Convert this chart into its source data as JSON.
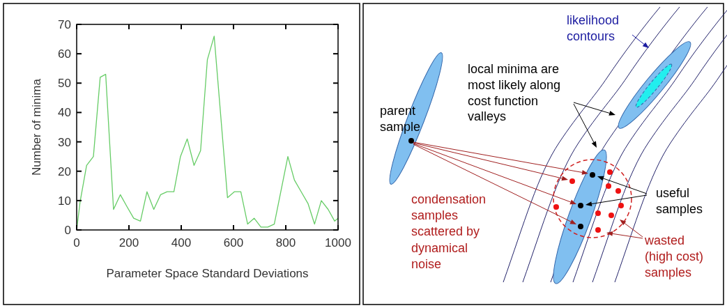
{
  "chart_data": [
    {
      "type": "line",
      "xlabel": "Parameter Space Standard Deviations",
      "ylabel": "Number of minima",
      "x": [
        0,
        13,
        38,
        64,
        90,
        111,
        141,
        167,
        192,
        218,
        244,
        269,
        295,
        321,
        346,
        372,
        397,
        423,
        449,
        474,
        500,
        526,
        577,
        603,
        628,
        654,
        679,
        705,
        731,
        756,
        808,
        833,
        859,
        885,
        910,
        936,
        962,
        987,
        1000
      ],
      "series": [
        {
          "color": "#66cc66",
          "values": [
            0,
            9.5,
            22,
            25,
            52,
            53,
            7,
            12,
            8,
            4,
            3,
            13,
            7,
            12,
            13,
            13,
            25,
            31,
            22,
            27,
            58,
            66,
            11,
            13,
            13,
            2,
            4,
            1,
            1,
            2,
            25,
            17,
            13,
            9,
            2,
            10,
            7,
            3,
            4
          ]
        }
      ],
      "xlim": [
        0,
        1000
      ],
      "ylim": [
        0,
        70
      ],
      "xticks": [
        0,
        200,
        400,
        600,
        800,
        1000
      ],
      "yticks": [
        0,
        10,
        20,
        30,
        40,
        50,
        60,
        70
      ],
      "grid": false,
      "marker": "none",
      "line_style": "solid"
    },
    {
      "type": "other",
      "annotations": [
        "likelihood\ncontours",
        "local minima are\nmost likely along\ncost function\nvalleys",
        "parent\nsample",
        "useful\nsamples",
        "condensation\nsamples\nscattered by\ndynamical\nnoise",
        "wasted\n(high cost)\nsamples"
      ]
    }
  ]
}
